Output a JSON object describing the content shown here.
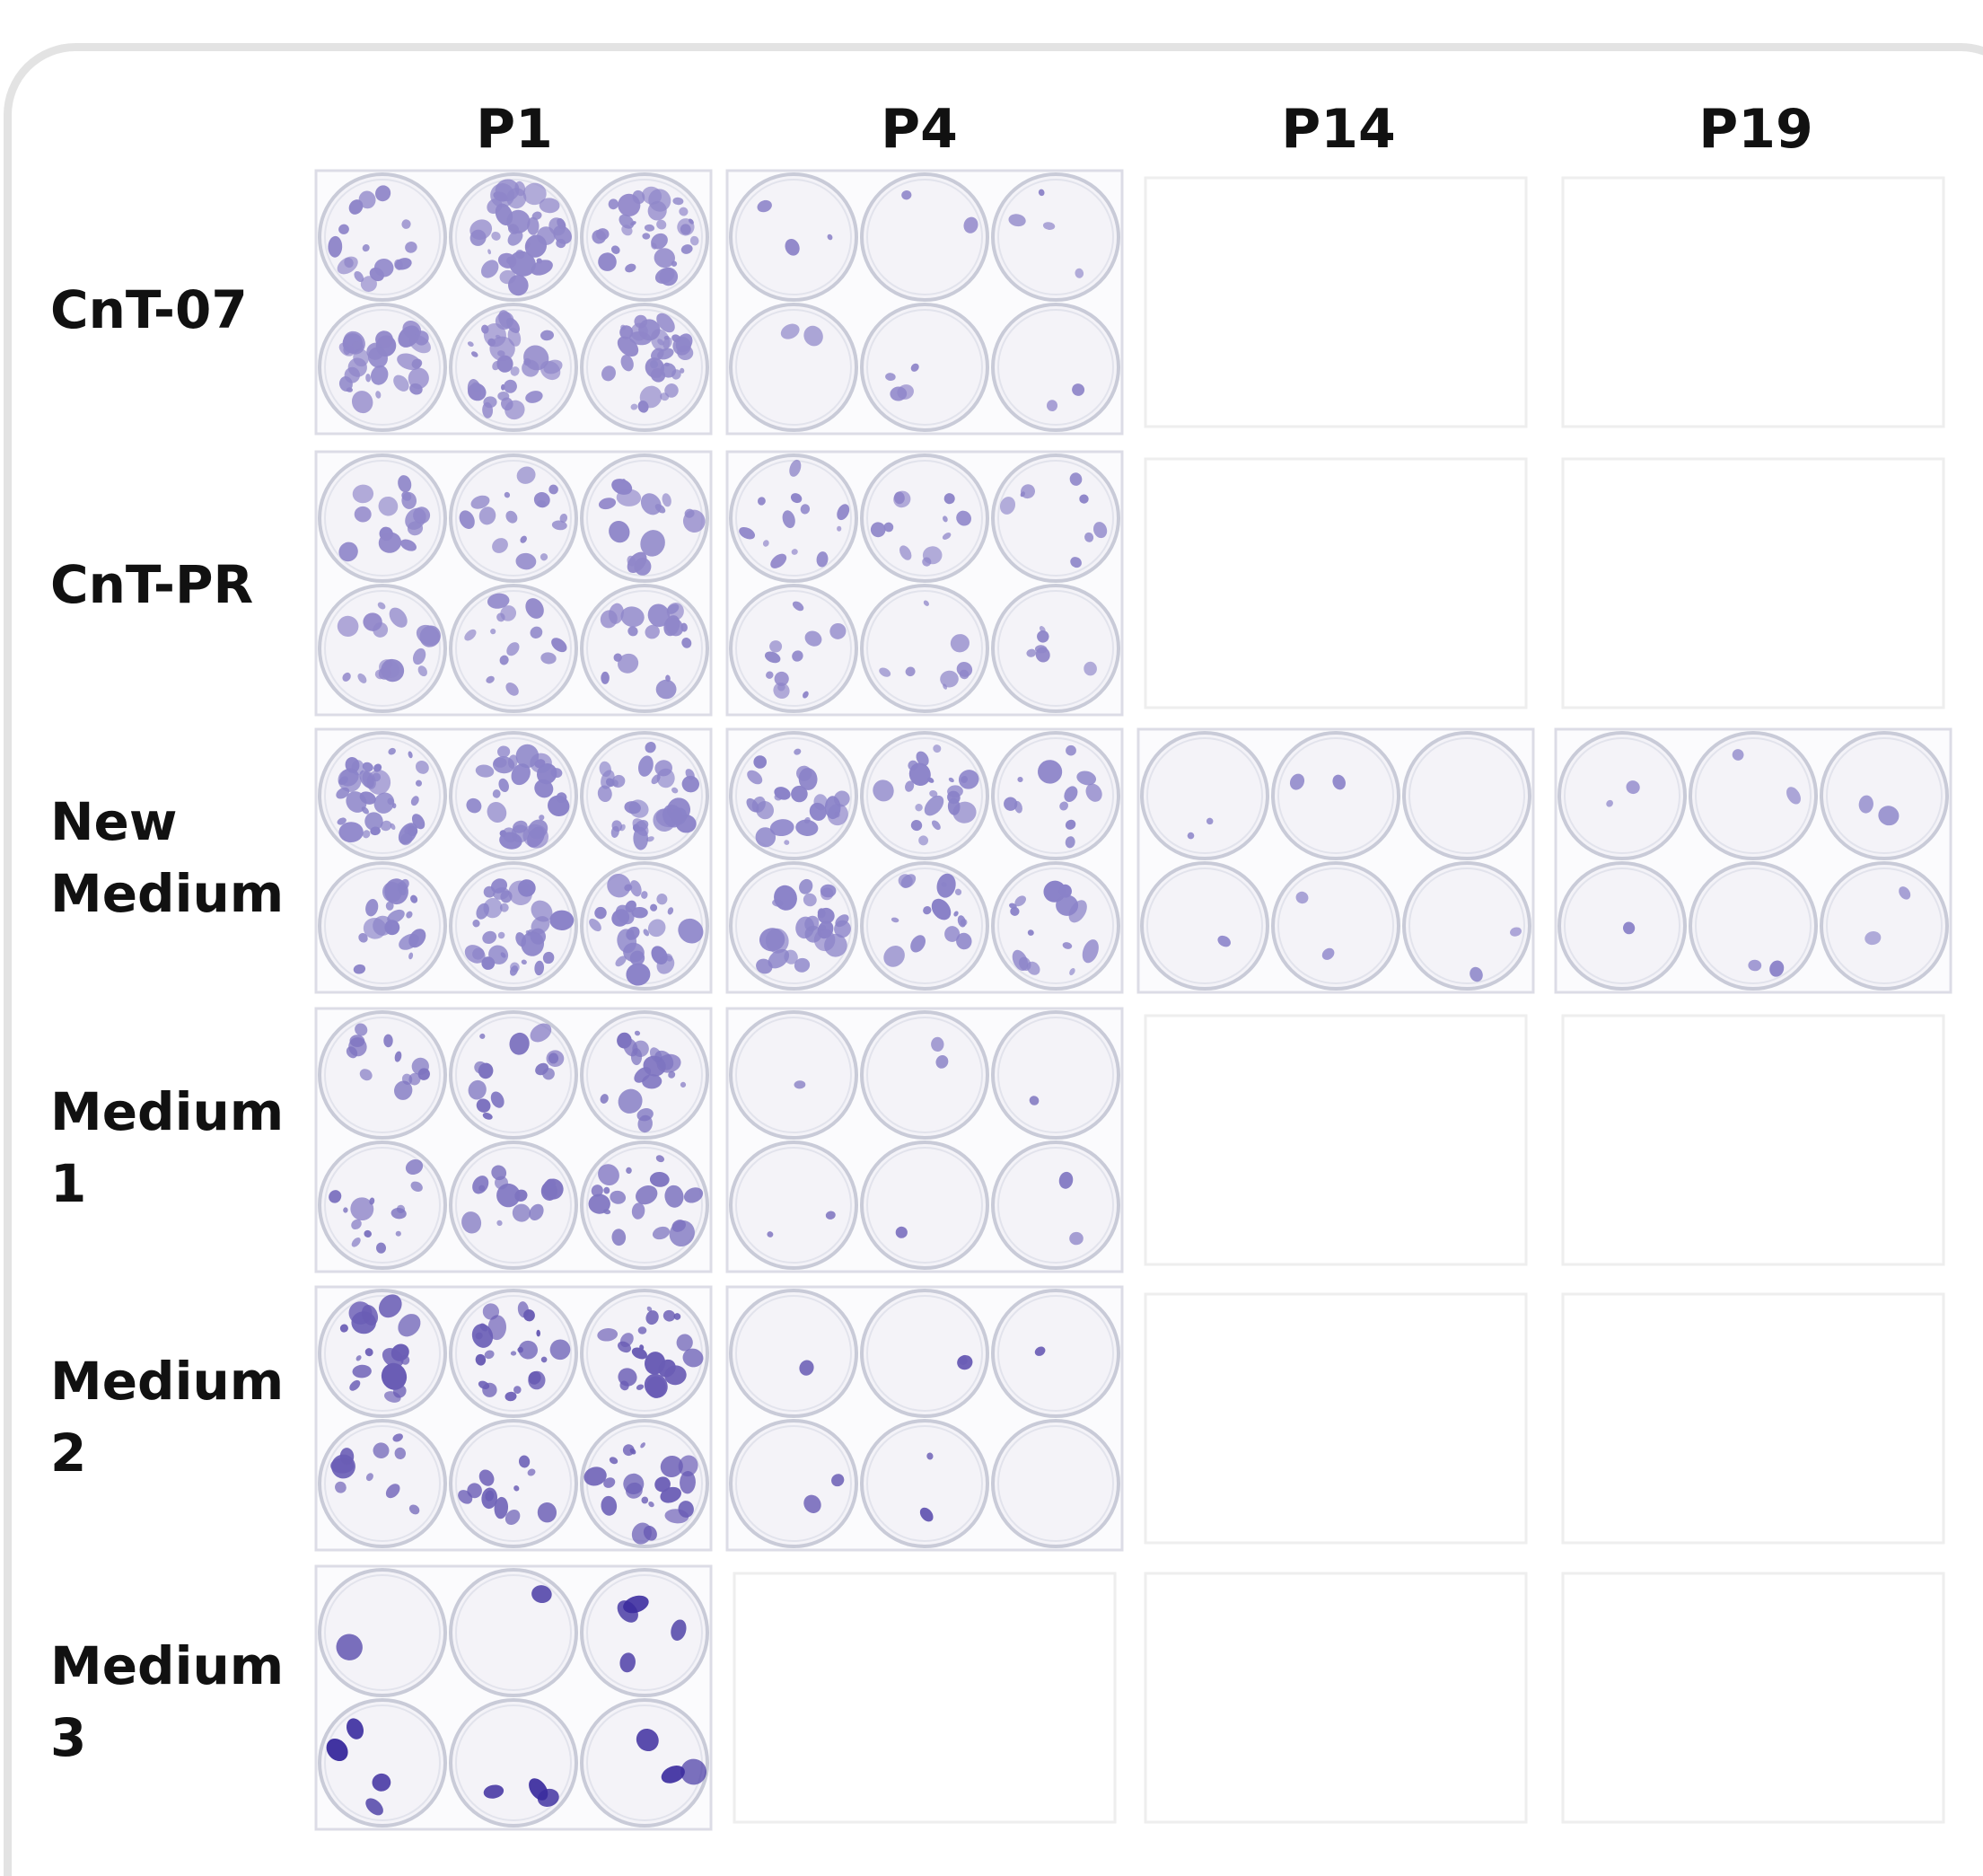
{
  "columns": [
    "P1",
    "P4",
    "P14",
    "P19"
  ],
  "rows": [
    "CnT-07",
    "CnT-PR",
    "New Medium",
    "Medium 1",
    "Medium 2",
    "Medium 3"
  ]
}
